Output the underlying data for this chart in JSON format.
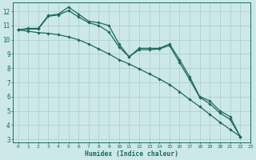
{
  "xlabel": "Humidex (Indice chaleur)",
  "bg_color": "#cce8e8",
  "grid_color_major": "#aacccc",
  "grid_color_minor": "#bbdddd",
  "line_color": "#1a6b5a",
  "y_curve": [
    10.7,
    10.8,
    10.8,
    11.7,
    11.8,
    12.3,
    11.8,
    11.3,
    11.2,
    11.0,
    9.7,
    8.8,
    9.4,
    9.4,
    9.4,
    9.7,
    8.6,
    7.4,
    6.0,
    5.7,
    5.0,
    4.6,
    3.2
  ],
  "y_straight": [
    10.7,
    10.6,
    10.5,
    10.45,
    10.35,
    10.2,
    10.0,
    9.7,
    9.35,
    9.0,
    8.6,
    8.3,
    7.95,
    7.6,
    7.25,
    6.85,
    6.35,
    5.8,
    5.3,
    4.75,
    4.2,
    3.7,
    3.2
  ],
  "y_mid": [
    10.7,
    10.75,
    10.75,
    11.65,
    11.75,
    12.05,
    11.6,
    11.2,
    11.0,
    10.55,
    9.5,
    8.8,
    9.3,
    9.3,
    9.35,
    9.6,
    8.4,
    7.2,
    5.95,
    5.5,
    4.85,
    4.4,
    3.2
  ],
  "xlim": [
    -0.5,
    23
  ],
  "ylim": [
    2.8,
    12.6
  ],
  "yticks": [
    3,
    4,
    5,
    6,
    7,
    8,
    9,
    10,
    11,
    12
  ],
  "xticks": [
    0,
    1,
    2,
    3,
    4,
    5,
    6,
    7,
    8,
    9,
    10,
    11,
    12,
    13,
    14,
    15,
    16,
    17,
    18,
    19,
    20,
    21,
    22,
    23
  ]
}
